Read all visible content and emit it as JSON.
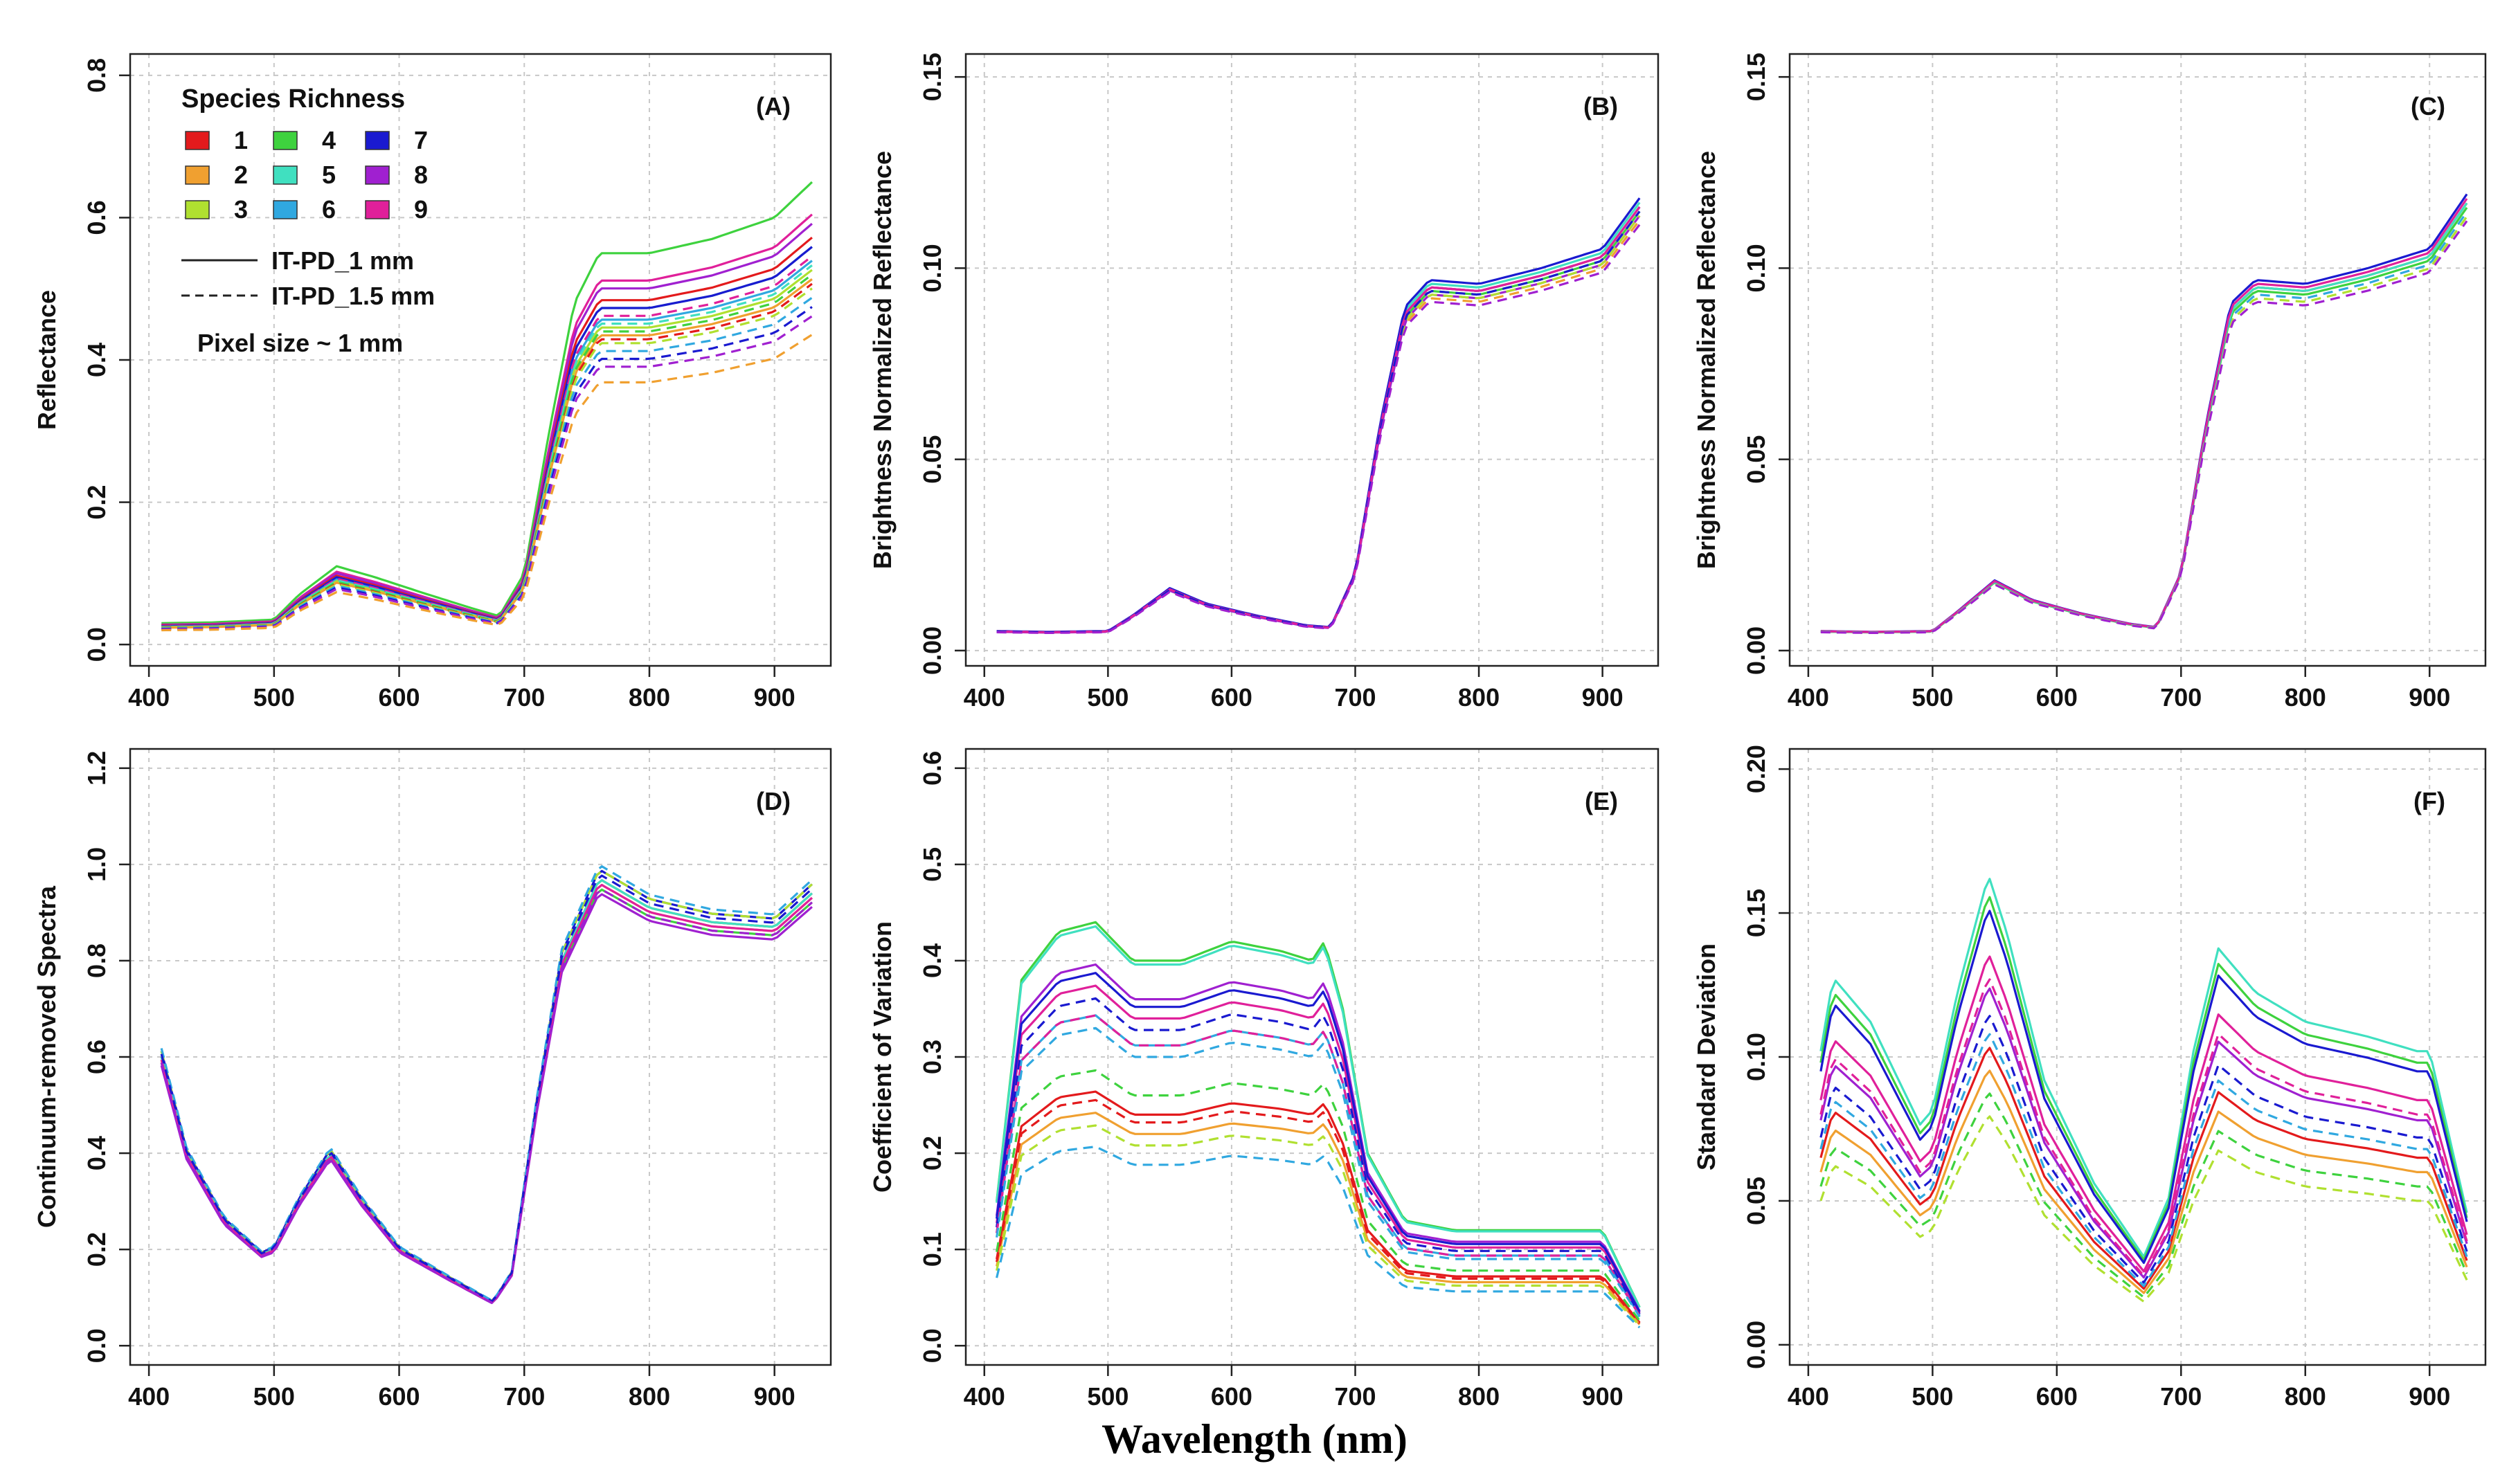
{
  "global_xlabel": "Wavelength (nm)",
  "legend": {
    "title": "Species Richness",
    "entries": [
      {
        "label": "1",
        "color": "#e31a1c"
      },
      {
        "label": "2",
        "color": "#f0a030"
      },
      {
        "label": "3",
        "color": "#b0e030"
      },
      {
        "label": "4",
        "color": "#3ed23e"
      },
      {
        "label": "5",
        "color": "#40e0c0"
      },
      {
        "label": "6",
        "color": "#30a8e0"
      },
      {
        "label": "7",
        "color": "#1a1ad0"
      },
      {
        "label": "8",
        "color": "#a020d0"
      },
      {
        "label": "9",
        "color": "#e0209a"
      }
    ],
    "line_styles": [
      {
        "label": "IT-PD_1 mm",
        "style": "solid"
      },
      {
        "label": "IT-PD_1.5 mm",
        "style": "dashed"
      }
    ],
    "note": "Pixel size ~ 1 mm"
  },
  "chart_data": [
    {
      "panel": "(A)",
      "type": "line",
      "ylabel": "Reflectance",
      "xlim": [
        385,
        945
      ],
      "ylim": [
        -0.03,
        0.83
      ],
      "xticks": [
        400,
        500,
        600,
        700,
        800,
        900
      ],
      "yticks": [
        0.0,
        0.2,
        0.4,
        0.6,
        0.8
      ],
      "ytick_labels": [
        "0.0",
        "0.2",
        "0.4",
        "0.6",
        "0.8"
      ],
      "template": {
        "x": [
          410,
          450,
          500,
          520,
          550,
          580,
          620,
          660,
          680,
          700,
          720,
          740,
          760,
          800,
          850,
          900,
          930
        ],
        "y": [
          0.03,
          0.031,
          0.035,
          0.07,
          0.11,
          0.095,
          0.072,
          0.05,
          0.04,
          0.1,
          0.3,
          0.48,
          0.55,
          0.55,
          0.57,
          0.6,
          0.65
        ]
      },
      "series": [
        {
          "name": "4",
          "style": "solid",
          "scale": 1.0
        },
        {
          "name": "9",
          "style": "solid",
          "scale": 0.93
        },
        {
          "name": "8",
          "style": "solid",
          "scale": 0.91
        },
        {
          "name": "1",
          "style": "solid",
          "scale": 0.88
        },
        {
          "name": "5",
          "style": "solid",
          "scale": 0.86
        },
        {
          "name": "7",
          "style": "solid",
          "scale": 0.86
        },
        {
          "name": "6",
          "style": "solid",
          "scale": 0.83
        },
        {
          "name": "3",
          "style": "solid",
          "scale": 0.81
        },
        {
          "name": "2",
          "style": "solid",
          "scale": 0.79
        },
        {
          "name": "9",
          "style": "dashed",
          "scale": 0.84
        },
        {
          "name": "5",
          "style": "dashed",
          "scale": 0.82
        },
        {
          "name": "4",
          "style": "dashed",
          "scale": 0.8
        },
        {
          "name": "1",
          "style": "dashed",
          "scale": 0.78
        },
        {
          "name": "3",
          "style": "dashed",
          "scale": 0.77
        },
        {
          "name": "6",
          "style": "dashed",
          "scale": 0.75
        },
        {
          "name": "7",
          "style": "dashed",
          "scale": 0.73
        },
        {
          "name": "8",
          "style": "dashed",
          "scale": 0.71
        },
        {
          "name": "2",
          "style": "dashed",
          "scale": 0.67
        }
      ]
    },
    {
      "panel": "(B)",
      "type": "line",
      "ylabel": "Brightness Normalized Reflectance",
      "xlim": [
        385,
        945
      ],
      "ylim": [
        -0.004,
        0.156
      ],
      "xticks": [
        400,
        500,
        600,
        700,
        800,
        900
      ],
      "yticks": [
        0.0,
        0.05,
        0.1,
        0.15
      ],
      "ytick_labels": [
        "0.00",
        "0.05",
        "0.10",
        "0.15"
      ],
      "template": {
        "x": [
          410,
          450,
          500,
          520,
          550,
          580,
          620,
          660,
          680,
          700,
          720,
          740,
          760,
          800,
          850,
          900,
          930
        ],
        "y": [
          0.005,
          0.0048,
          0.005,
          0.009,
          0.016,
          0.012,
          0.009,
          0.0065,
          0.006,
          0.02,
          0.058,
          0.088,
          0.095,
          0.094,
          0.098,
          0.103,
          0.116
        ]
      },
      "series": [
        {
          "name": "1",
          "style": "solid",
          "scale": 1.0
        },
        {
          "name": "4",
          "style": "solid",
          "scale": 0.99
        },
        {
          "name": "5",
          "style": "solid",
          "scale": 1.01
        },
        {
          "name": "6",
          "style": "solid",
          "scale": 1.0
        },
        {
          "name": "7",
          "style": "solid",
          "scale": 1.02
        },
        {
          "name": "8",
          "style": "solid",
          "scale": 0.98
        },
        {
          "name": "9",
          "style": "solid",
          "scale": 1.0
        },
        {
          "name": "2",
          "style": "dashed",
          "scale": 0.97
        },
        {
          "name": "3",
          "style": "dashed",
          "scale": 0.98
        },
        {
          "name": "7",
          "style": "dashed",
          "scale": 0.99
        },
        {
          "name": "8",
          "style": "dashed",
          "scale": 0.96
        }
      ]
    },
    {
      "panel": "(C)",
      "type": "line",
      "ylabel": "Brightness Normalized Reflectance",
      "xlim": [
        385,
        945
      ],
      "ylim": [
        -0.004,
        0.156
      ],
      "xticks": [
        400,
        500,
        600,
        700,
        800,
        900
      ],
      "yticks": [
        0.0,
        0.05,
        0.1,
        0.15
      ],
      "ytick_labels": [
        "0.00",
        "0.05",
        "0.10",
        "0.15"
      ],
      "template": {
        "x": [
          410,
          450,
          500,
          520,
          550,
          580,
          620,
          660,
          680,
          700,
          720,
          740,
          760,
          800,
          850,
          900,
          930
        ],
        "y": [
          0.005,
          0.0048,
          0.005,
          0.01,
          0.018,
          0.013,
          0.0095,
          0.0068,
          0.006,
          0.02,
          0.058,
          0.089,
          0.095,
          0.094,
          0.098,
          0.103,
          0.117
        ]
      },
      "series": [
        {
          "name": "7",
          "style": "solid",
          "scale": 1.02
        },
        {
          "name": "1",
          "style": "solid",
          "scale": 1.0
        },
        {
          "name": "4",
          "style": "solid",
          "scale": 0.99
        },
        {
          "name": "5",
          "style": "solid",
          "scale": 1.0
        },
        {
          "name": "9",
          "style": "solid",
          "scale": 1.01
        },
        {
          "name": "6",
          "style": "dashed",
          "scale": 0.98
        },
        {
          "name": "3",
          "style": "dashed",
          "scale": 0.97
        },
        {
          "name": "8",
          "style": "dashed",
          "scale": 0.96
        }
      ]
    },
    {
      "panel": "(D)",
      "type": "line",
      "ylabel": "Continuum-removed Spectra",
      "xlim": [
        385,
        945
      ],
      "ylim": [
        -0.04,
        1.24
      ],
      "xticks": [
        400,
        500,
        600,
        700,
        800,
        900
      ],
      "yticks": [
        0.0,
        0.2,
        0.4,
        0.6,
        0.8,
        1.0,
        1.2
      ],
      "ytick_labels": [
        "0.0",
        "0.2",
        "0.4",
        "0.6",
        "0.8",
        "1.0",
        "1.2"
      ],
      "template": {
        "x": [
          410,
          430,
          460,
          490,
          500,
          520,
          545,
          570,
          600,
          640,
          675,
          690,
          710,
          730,
          760,
          800,
          850,
          900,
          930
        ],
        "y": [
          0.6,
          0.4,
          0.26,
          0.19,
          0.2,
          0.3,
          0.4,
          0.3,
          0.2,
          0.14,
          0.09,
          0.15,
          0.5,
          0.8,
          0.97,
          0.91,
          0.88,
          0.87,
          0.94
        ]
      },
      "series": [
        {
          "name": "7",
          "style": "solid",
          "scale": 1.02
        },
        {
          "name": "1",
          "style": "solid",
          "scale": 1.0
        },
        {
          "name": "2",
          "style": "solid",
          "scale": 0.99
        },
        {
          "name": "4",
          "style": "solid",
          "scale": 0.98
        },
        {
          "name": "5",
          "style": "solid",
          "scale": 1.0
        },
        {
          "name": "8",
          "style": "solid",
          "scale": 0.97
        },
        {
          "name": "9",
          "style": "solid",
          "scale": 0.99
        },
        {
          "name": "3",
          "style": "dashed",
          "scale": 1.02
        },
        {
          "name": "6",
          "style": "dashed",
          "scale": 1.03
        },
        {
          "name": "7",
          "style": "dashed",
          "scale": 1.01
        },
        {
          "name": "8",
          "style": "dashed",
          "scale": 0.98
        }
      ]
    },
    {
      "panel": "(E)",
      "type": "line",
      "ylabel": "Coefficient of Variation",
      "xlim": [
        385,
        945
      ],
      "ylim": [
        -0.02,
        0.62
      ],
      "xticks": [
        400,
        500,
        600,
        700,
        800,
        900
      ],
      "yticks": [
        0.0,
        0.1,
        0.2,
        0.3,
        0.4,
        0.5,
        0.6
      ],
      "ytick_labels": [
        "0.0",
        "0.1",
        "0.2",
        "0.3",
        "0.4",
        "0.5",
        "0.6"
      ],
      "template": {
        "x": [
          410,
          430,
          460,
          490,
          520,
          560,
          600,
          640,
          665,
          675,
          690,
          710,
          740,
          780,
          850,
          900,
          930
        ],
        "y": [
          0.15,
          0.38,
          0.43,
          0.44,
          0.4,
          0.4,
          0.42,
          0.41,
          0.4,
          0.42,
          0.35,
          0.2,
          0.13,
          0.12,
          0.12,
          0.12,
          0.04
        ]
      },
      "series": [
        {
          "name": "4",
          "style": "solid",
          "scale": 1.0
        },
        {
          "name": "5",
          "style": "solid",
          "scale": 0.99
        },
        {
          "name": "8",
          "style": "solid",
          "scale": 0.9
        },
        {
          "name": "9",
          "style": "solid",
          "scale": 0.85
        },
        {
          "name": "7",
          "style": "solid",
          "scale": 0.88
        },
        {
          "name": "6",
          "style": "solid",
          "scale": 0.78
        },
        {
          "name": "1",
          "style": "solid",
          "scale": 0.6
        },
        {
          "name": "2",
          "style": "solid",
          "scale": 0.55
        },
        {
          "name": "7",
          "style": "dashed",
          "scale": 0.82
        },
        {
          "name": "9",
          "style": "dashed",
          "scale": 0.78
        },
        {
          "name": "6",
          "style": "dashed",
          "scale": 0.75
        },
        {
          "name": "4",
          "style": "dashed",
          "scale": 0.65
        },
        {
          "name": "1",
          "style": "dashed",
          "scale": 0.58
        },
        {
          "name": "3",
          "style": "dashed",
          "scale": 0.52
        },
        {
          "name": "6",
          "style": "dashed",
          "scale": 0.47
        }
      ]
    },
    {
      "panel": "(F)",
      "type": "line",
      "ylabel": "Standard Deviation",
      "xlim": [
        385,
        945
      ],
      "ylim": [
        -0.007,
        0.207
      ],
      "xticks": [
        400,
        500,
        600,
        700,
        800,
        900
      ],
      "yticks": [
        0.0,
        0.05,
        0.1,
        0.15,
        0.2
      ],
      "ytick_labels": [
        "0.00",
        "0.05",
        "0.10",
        "0.15",
        "0.20"
      ],
      "template": {
        "x": [
          410,
          420,
          450,
          490,
          500,
          520,
          545,
          560,
          590,
          630,
          670,
          690,
          710,
          730,
          760,
          800,
          850,
          890,
          900,
          930
        ],
        "y": [
          0.1,
          0.125,
          0.11,
          0.075,
          0.08,
          0.12,
          0.16,
          0.14,
          0.09,
          0.055,
          0.03,
          0.05,
          0.1,
          0.135,
          0.12,
          0.11,
          0.105,
          0.1,
          0.1,
          0.045
        ]
      },
      "series": [
        {
          "name": "5",
          "style": "solid",
          "scale": 1.02
        },
        {
          "name": "4",
          "style": "solid",
          "scale": 0.98
        },
        {
          "name": "7",
          "style": "solid",
          "scale": 0.95
        },
        {
          "name": "9",
          "style": "solid",
          "scale": 0.85
        },
        {
          "name": "8",
          "style": "solid",
          "scale": 0.78
        },
        {
          "name": "1",
          "style": "solid",
          "scale": 0.65
        },
        {
          "name": "2",
          "style": "solid",
          "scale": 0.6
        },
        {
          "name": "9",
          "style": "dashed",
          "scale": 0.8
        },
        {
          "name": "7",
          "style": "dashed",
          "scale": 0.72
        },
        {
          "name": "6",
          "style": "dashed",
          "scale": 0.68
        },
        {
          "name": "4",
          "style": "dashed",
          "scale": 0.55
        },
        {
          "name": "3",
          "style": "dashed",
          "scale": 0.5
        }
      ]
    }
  ]
}
